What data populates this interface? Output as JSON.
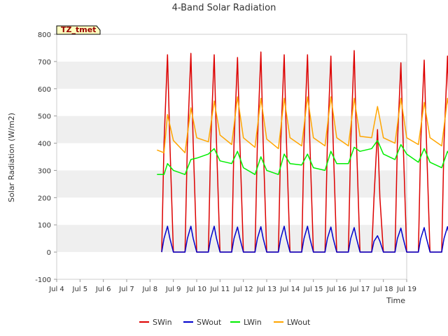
{
  "chart_data": {
    "type": "line",
    "title": "4-Band Solar Radiation",
    "xlabel": "Time",
    "ylabel": "Solar Radiation (W/m2)",
    "badge": "TZ_tmet",
    "xlim": [
      "Jul 4",
      "Jul 19"
    ],
    "ylim": [
      -100,
      800
    ],
    "x_ticks": [
      "Jul 4",
      "Jul 5",
      "Jul 6",
      "Jul 7",
      "Jul 8",
      "Jul 9",
      "Jul 10",
      "Jul 11",
      "Jul 12",
      "Jul 13",
      "Jul 14",
      "Jul 15",
      "Jul 16",
      "Jul 17",
      "Jul 18",
      "Jul 19"
    ],
    "y_ticks": [
      -100,
      0,
      100,
      200,
      300,
      400,
      500,
      600,
      700,
      800
    ],
    "grid": "horizontal bands",
    "legend_position": "bottom",
    "x_unit": "days after Jul 4 00:00",
    "series": [
      {
        "name": "SWin",
        "color": "#dd0000",
        "x": [
          4.5,
          4.6,
          4.75,
          4.85,
          5.0,
          5.5,
          5.6,
          5.75,
          5.85,
          6.0,
          6.5,
          6.6,
          6.75,
          6.85,
          7.0,
          7.5,
          7.6,
          7.75,
          7.85,
          8.0,
          8.5,
          8.6,
          8.75,
          8.85,
          9.0,
          9.5,
          9.6,
          9.75,
          9.85,
          10.0,
          10.5,
          10.6,
          10.75,
          10.85,
          11.0,
          11.5,
          11.6,
          11.75,
          11.85,
          12.0,
          12.5,
          12.6,
          12.75,
          12.85,
          13.0,
          13.5,
          13.6,
          13.75,
          13.85,
          14.0,
          14.5,
          14.6,
          14.75,
          14.85,
          15.0,
          15.5,
          15.6,
          15.75,
          15.85,
          16.0,
          16.5,
          16.6,
          16.75,
          16.85,
          17.0,
          17.5,
          17.6,
          17.75,
          17.85,
          18.0
        ],
        "values": [
          0,
          400,
          725,
          400,
          0,
          0,
          400,
          730,
          400,
          0,
          0,
          400,
          725,
          400,
          0,
          0,
          400,
          715,
          400,
          0,
          0,
          400,
          735,
          400,
          0,
          0,
          400,
          725,
          400,
          0,
          0,
          400,
          725,
          400,
          0,
          0,
          400,
          720,
          400,
          0,
          0,
          400,
          740,
          400,
          0,
          0,
          200,
          450,
          200,
          0,
          0,
          400,
          695,
          400,
          0,
          0,
          400,
          705,
          400,
          0,
          0,
          400,
          720,
          400,
          0,
          0,
          400,
          725,
          400,
          0
        ]
      },
      {
        "name": "SWout",
        "color": "#0000cc",
        "x": [
          4.5,
          4.6,
          4.75,
          4.85,
          5.0,
          5.5,
          5.6,
          5.75,
          5.85,
          6.0,
          6.5,
          6.6,
          6.75,
          6.85,
          7.0,
          7.5,
          7.6,
          7.75,
          7.85,
          8.0,
          8.5,
          8.6,
          8.75,
          8.85,
          9.0,
          9.5,
          9.6,
          9.75,
          9.85,
          10.0,
          10.5,
          10.6,
          10.75,
          10.85,
          11.0,
          11.5,
          11.6,
          11.75,
          11.85,
          12.0,
          12.5,
          12.6,
          12.75,
          12.85,
          13.0,
          13.5,
          13.6,
          13.75,
          13.85,
          14.0,
          14.5,
          14.6,
          14.75,
          14.85,
          15.0,
          15.5,
          15.6,
          15.75,
          15.85,
          16.0,
          16.5,
          16.6,
          16.75,
          16.85,
          17.0,
          17.5,
          17.6,
          17.75,
          17.85,
          18.0
        ],
        "values": [
          0,
          50,
          95,
          50,
          0,
          0,
          50,
          95,
          50,
          0,
          0,
          50,
          95,
          50,
          0,
          0,
          50,
          92,
          50,
          0,
          0,
          50,
          93,
          50,
          0,
          0,
          50,
          95,
          50,
          0,
          0,
          50,
          95,
          50,
          0,
          0,
          50,
          92,
          50,
          0,
          0,
          50,
          90,
          50,
          0,
          0,
          40,
          60,
          40,
          0,
          0,
          50,
          88,
          50,
          0,
          0,
          50,
          90,
          50,
          0,
          0,
          50,
          93,
          50,
          0,
          0,
          50,
          95,
          50,
          0
        ]
      },
      {
        "name": "LWin",
        "color": "#00ee00",
        "x": [
          4.3,
          4.6,
          4.75,
          5.0,
          5.5,
          5.75,
          6.0,
          6.5,
          6.75,
          7.0,
          7.5,
          7.75,
          8.0,
          8.5,
          8.75,
          9.0,
          9.5,
          9.75,
          10.0,
          10.5,
          10.75,
          11.0,
          11.5,
          11.75,
          12.0,
          12.5,
          12.75,
          13.0,
          13.5,
          13.75,
          14.0,
          14.5,
          14.75,
          15.0,
          15.5,
          15.75,
          16.0,
          16.5,
          16.75,
          17.0,
          17.5,
          17.75,
          18.0,
          18.2
        ],
        "values": [
          285,
          285,
          325,
          300,
          285,
          340,
          345,
          360,
          380,
          335,
          325,
          370,
          310,
          285,
          350,
          300,
          285,
          360,
          325,
          320,
          360,
          310,
          300,
          370,
          325,
          325,
          385,
          370,
          380,
          410,
          360,
          340,
          395,
          360,
          330,
          380,
          330,
          310,
          370,
          330,
          305,
          365,
          335,
          315
        ]
      },
      {
        "name": "LWout",
        "color": "#ffa500",
        "x": [
          4.3,
          4.6,
          4.75,
          5.0,
          5.5,
          5.75,
          6.0,
          6.5,
          6.75,
          7.0,
          7.5,
          7.75,
          8.0,
          8.5,
          8.75,
          9.0,
          9.5,
          9.75,
          10.0,
          10.5,
          10.75,
          11.0,
          11.5,
          11.75,
          12.0,
          12.5,
          12.75,
          13.0,
          13.5,
          13.75,
          14.0,
          14.5,
          14.75,
          15.0,
          15.5,
          15.75,
          16.0,
          16.5,
          16.75,
          17.0,
          17.5,
          17.75,
          18.0,
          18.2
        ],
        "values": [
          375,
          365,
          505,
          410,
          365,
          530,
          420,
          405,
          555,
          430,
          395,
          570,
          420,
          385,
          565,
          415,
          380,
          565,
          420,
          390,
          570,
          420,
          390,
          570,
          420,
          390,
          565,
          425,
          420,
          535,
          420,
          400,
          565,
          420,
          395,
          550,
          420,
          390,
          565,
          420,
          395,
          570,
          430,
          410
        ]
      }
    ]
  }
}
